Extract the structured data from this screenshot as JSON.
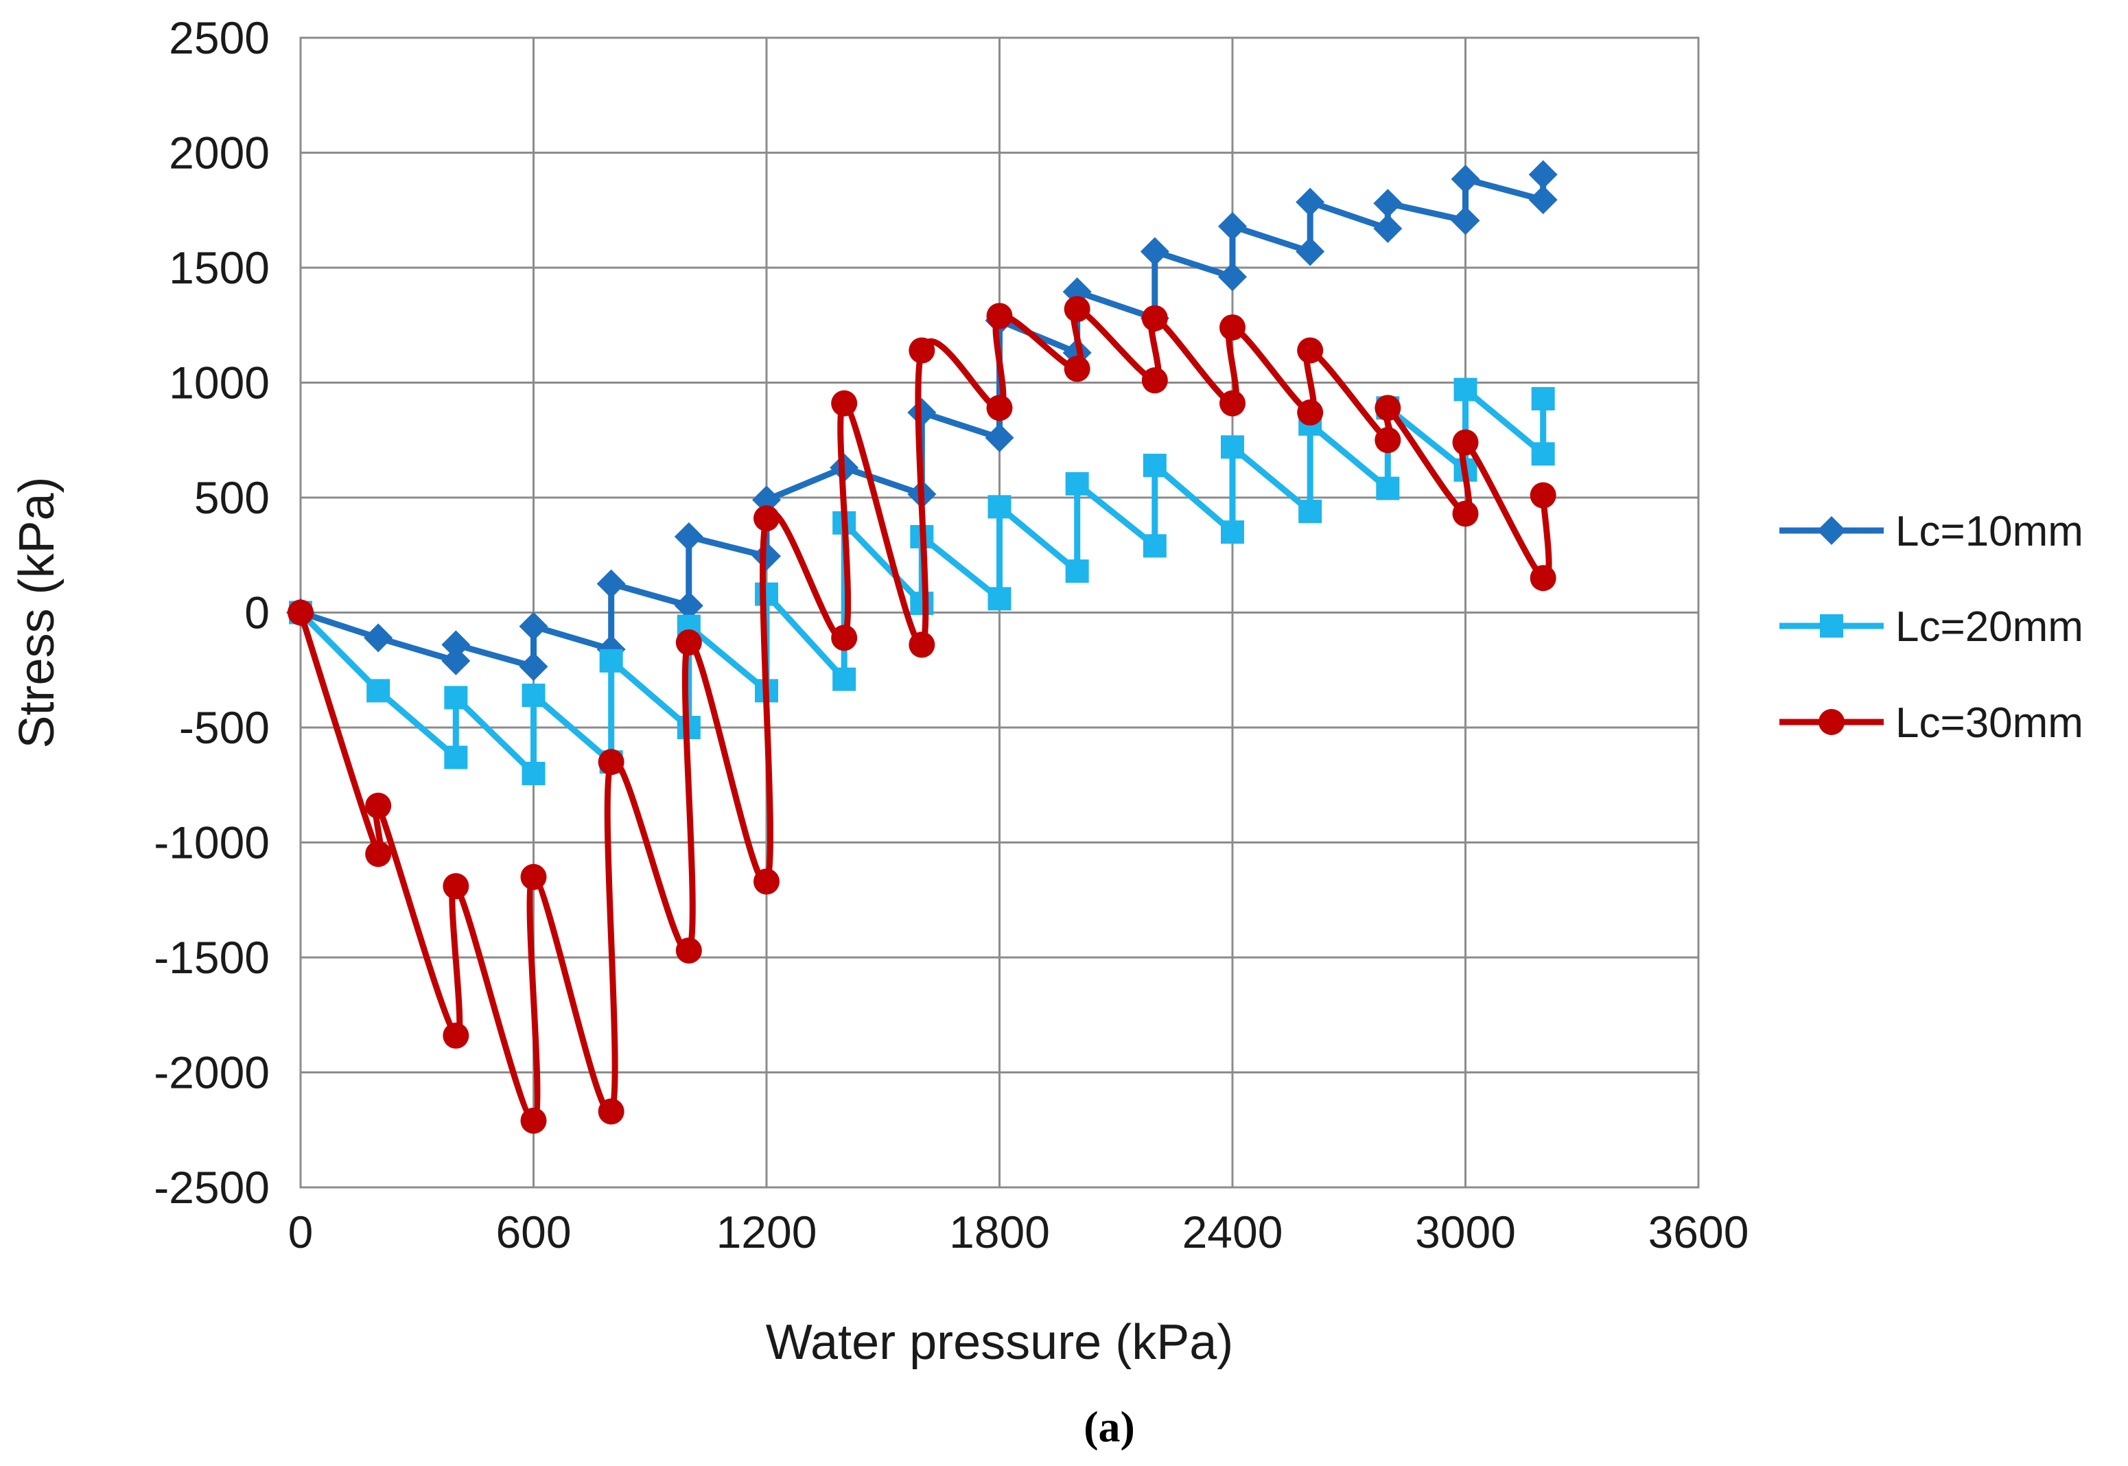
{
  "chart_data": {
    "type": "line",
    "title": "",
    "xlabel": "Water pressure (kPa)",
    "ylabel": "Stress (kPa)",
    "caption": "(a)",
    "xlim": [
      0,
      3600
    ],
    "ylim": [
      -2500,
      2500
    ],
    "xticks": [
      0,
      600,
      1200,
      1800,
      2400,
      3000,
      3600
    ],
    "yticks": [
      2500,
      2000,
      1500,
      1000,
      500,
      0,
      -500,
      -1000,
      -1500,
      -2000,
      -2500
    ],
    "xtick_labels": [
      "0",
      "600",
      "1200",
      "1800",
      "2400",
      "3000",
      "3600"
    ],
    "ytick_labels": [
      "2500",
      "2000",
      "1500",
      "1000",
      "500",
      "0",
      "-500",
      "-1000",
      "-1500",
      "-2000",
      "-2500"
    ],
    "grid": true,
    "legend_position": "right",
    "series": [
      {
        "name": "Lc=10mm",
        "color": "#1F6FBF",
        "marker": "diamond",
        "x": [
          0,
          200,
          400,
          400,
          600,
          600,
          800,
          800,
          1000,
          1000,
          1200,
          1200,
          1400,
          1600,
          1600,
          1800,
          1800,
          2000,
          2000,
          2200,
          2200,
          2400,
          2400,
          2600,
          2600,
          2800,
          2800,
          3000,
          3000,
          3200,
          3200
        ],
        "y": [
          0,
          -110,
          -210,
          -140,
          -235,
          -60,
          -160,
          125,
          30,
          330,
          245,
          490,
          630,
          515,
          870,
          760,
          1270,
          1130,
          1395,
          1280,
          1570,
          1460,
          1680,
          1570,
          1785,
          1670,
          1780,
          1705,
          1885,
          1795,
          1905
        ]
      },
      {
        "name": "Lc=20mm",
        "color": "#1EB4EC",
        "marker": "square",
        "x": [
          0,
          200,
          400,
          400,
          600,
          600,
          800,
          800,
          1000,
          1000,
          1200,
          1200,
          1400,
          1400,
          1600,
          1600,
          1800,
          1800,
          2000,
          2000,
          2200,
          2200,
          2400,
          2400,
          2600,
          2600,
          2800,
          2800,
          3000,
          3000,
          3200,
          3200
        ],
        "y": [
          0,
          -340,
          -630,
          -370,
          -700,
          -360,
          -650,
          -210,
          -500,
          -60,
          -340,
          80,
          -290,
          390,
          40,
          330,
          60,
          460,
          180,
          560,
          290,
          640,
          350,
          720,
          440,
          820,
          540,
          890,
          620,
          970,
          690,
          930
        ]
      },
      {
        "name": "Lc=30mm",
        "color": "#C00000",
        "marker": "circle",
        "x": [
          0,
          200,
          200,
          400,
          400,
          600,
          600,
          800,
          800,
          1000,
          1000,
          1200,
          1200,
          1400,
          1400,
          1600,
          1600,
          1800,
          1800,
          2000,
          2000,
          2200,
          2200,
          2400,
          2400,
          2600,
          2600,
          2800,
          2800,
          3000,
          3000,
          3200,
          3200
        ],
        "y": [
          0,
          -1050,
          -840,
          -1840,
          -1190,
          -2210,
          -1150,
          -2170,
          -650,
          -1470,
          -130,
          -1170,
          410,
          -110,
          910,
          -140,
          1140,
          890,
          1290,
          1060,
          1320,
          1010,
          1280,
          910,
          1240,
          870,
          1140,
          750,
          890,
          430,
          740,
          150,
          510
        ]
      }
    ]
  }
}
